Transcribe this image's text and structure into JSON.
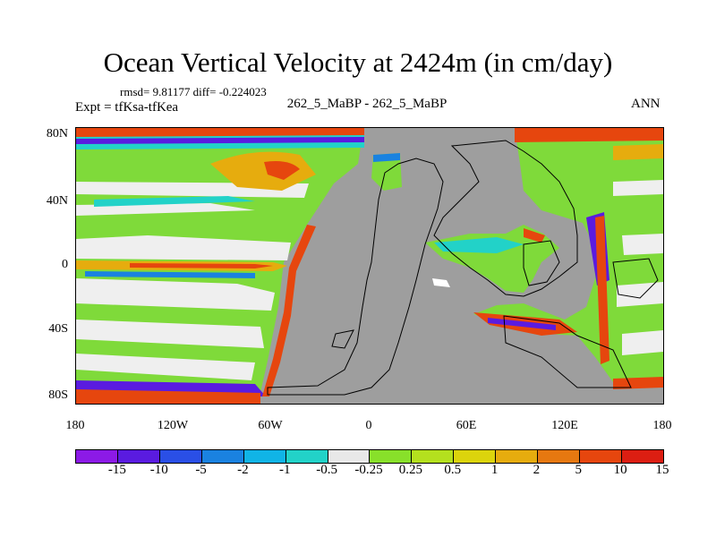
{
  "figure": {
    "title": "Ocean Vertical Velocity at 2424m (in cm/day)",
    "stats": "rmsd= 9.81177 diff= -0.224023",
    "expt": "Expt = tfKsa-tfKea",
    "case": "262_5_MaBP - 262_5_MaBP",
    "season": "ANN"
  },
  "map": {
    "lat_labels": [
      "80N",
      "40N",
      "0",
      "40S",
      "80S"
    ],
    "lon_labels": [
      "180",
      "120W",
      "60W",
      "0",
      "60E",
      "120E",
      "180"
    ],
    "land_color": "#9e9e9e"
  },
  "colorbar": {
    "labels": [
      "-15",
      "-10",
      "-5",
      "-2",
      "-1",
      "-0.5",
      "-0.25",
      "0.25",
      "0.5",
      "1",
      "2",
      "5",
      "10",
      "15"
    ],
    "colors": [
      "#8c1ae6",
      "#5a1be0",
      "#2a4fe6",
      "#1a82e0",
      "#10b4e6",
      "#22d2c8",
      "#e8e8e8",
      "#88e02a",
      "#b4e01e",
      "#dcd40c",
      "#e6ac0e",
      "#e67810",
      "#e6460e",
      "#dc1e12"
    ]
  }
}
